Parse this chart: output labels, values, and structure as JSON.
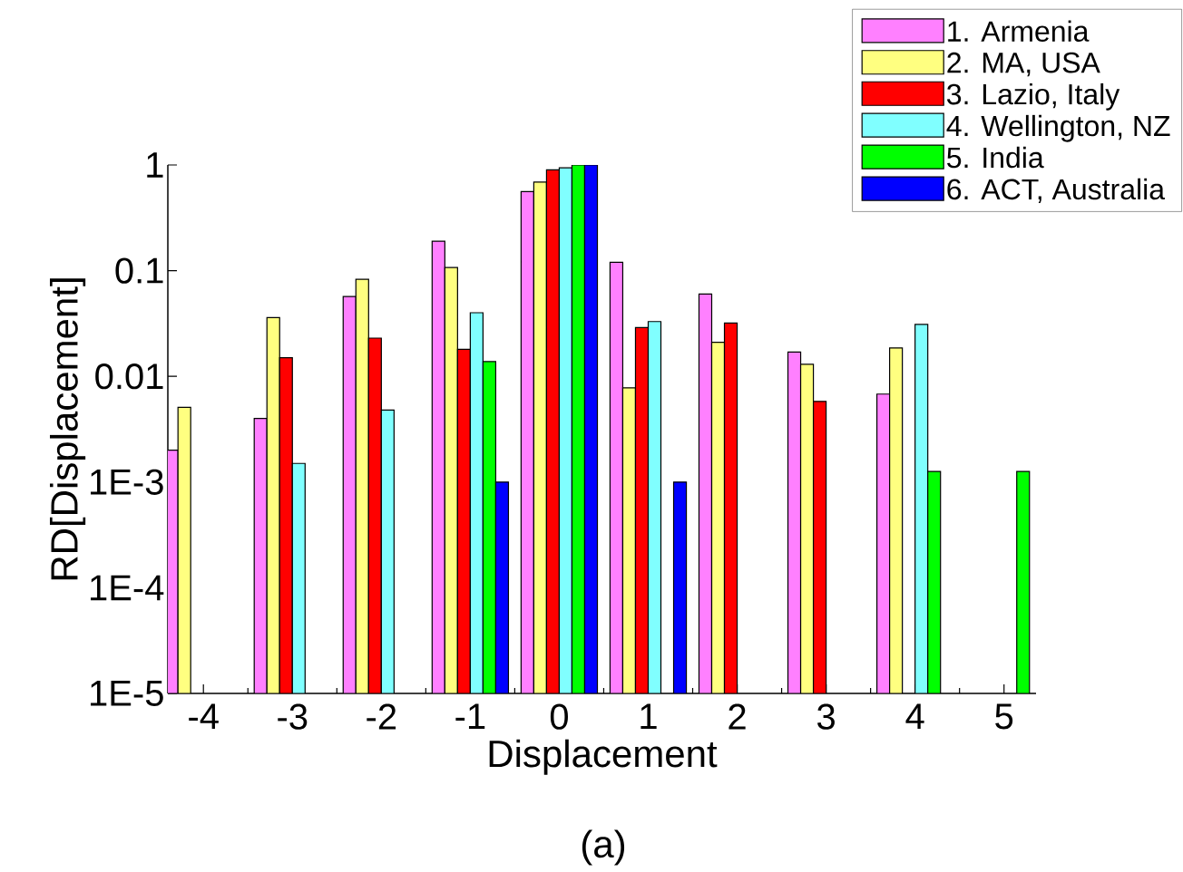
{
  "chart_data": {
    "type": "bar",
    "xlabel": "Displacement",
    "ylabel": "RD[Displacement]",
    "annotations": [
      "(a)"
    ],
    "x": [
      -4,
      -3,
      -2,
      -1,
      0,
      1,
      2,
      3,
      4,
      5
    ],
    "xlim": [
      -4.4,
      5.36
    ],
    "xticks": [
      -4,
      -3,
      -2,
      -1,
      0,
      1,
      2,
      3,
      4,
      5
    ],
    "ylim": [
      1e-05,
      1
    ],
    "yticks": [
      1,
      0.1,
      0.01,
      {
        "value": 0.001,
        "label": "1E-3"
      },
      {
        "value": 0.0001,
        "label": "1E-4"
      },
      {
        "value": 1e-05,
        "label": "1E-5"
      }
    ],
    "log": true,
    "legend": "top right",
    "series": [
      {
        "name": "1. Armenia",
        "color": "#ff80ff",
        "values": [
          0.002,
          0.004,
          0.057,
          0.19,
          0.56,
          0.12,
          0.06,
          0.017,
          0.0068,
          null
        ]
      },
      {
        "name": "2. MA, USA",
        "color": "#ffff80",
        "values": [
          0.0051,
          0.036,
          0.083,
          0.107,
          0.69,
          0.0078,
          0.021,
          0.013,
          0.0186,
          null
        ]
      },
      {
        "name": "3. Lazio, Italy",
        "color": "#ff0000",
        "values": [
          null,
          0.015,
          0.023,
          0.018,
          0.9,
          0.029,
          0.032,
          0.0058,
          null,
          null
        ]
      },
      {
        "name": "4. Wellington, NZ",
        "color": "#80ffff",
        "values": [
          null,
          0.0015,
          0.0048,
          0.04,
          0.94,
          0.033,
          null,
          null,
          0.031,
          null
        ]
      },
      {
        "name": "5. India",
        "color": "#00ff00",
        "values": [
          null,
          null,
          null,
          0.0138,
          1,
          null,
          null,
          null,
          0.00126,
          0.00126
        ]
      },
      {
        "name": "6. ACT, Australia",
        "color": "#0000ff",
        "values": [
          null,
          null,
          null,
          0.001,
          1,
          0.001,
          null,
          null,
          null,
          null
        ]
      }
    ]
  }
}
